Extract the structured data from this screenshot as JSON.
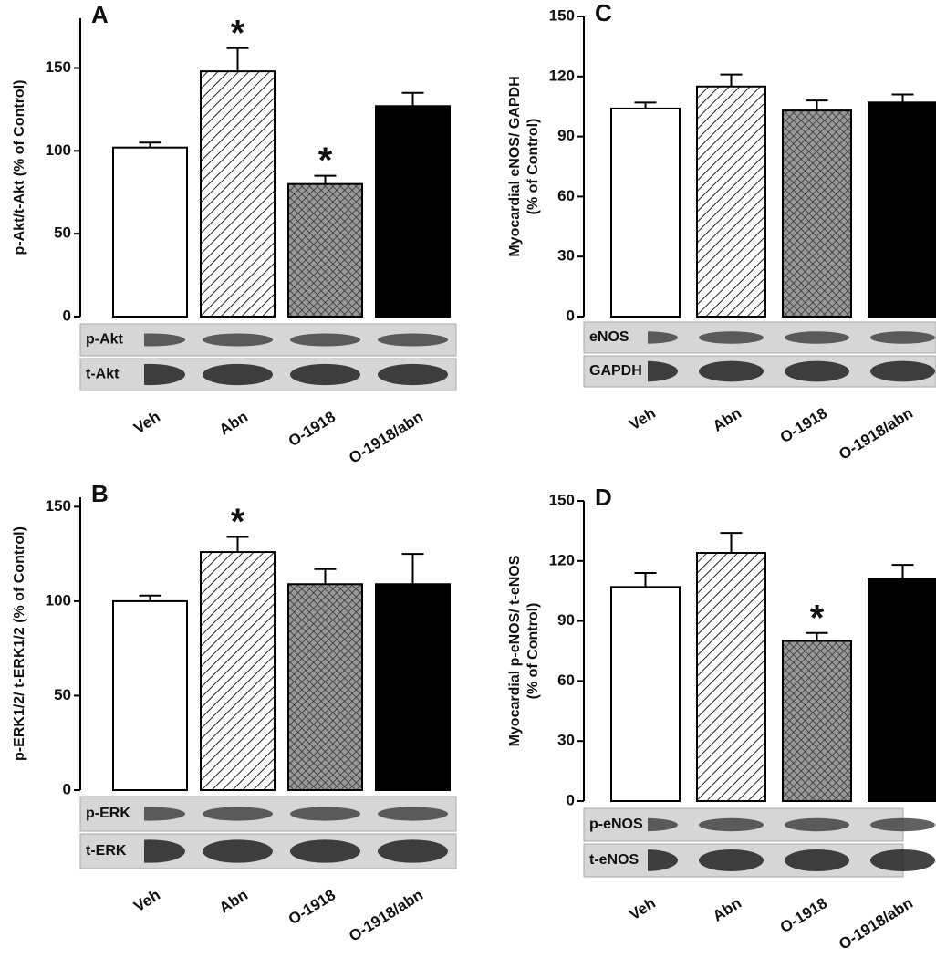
{
  "chart_data": [
    {
      "type": "bar",
      "panel": "A",
      "y_label_lines": [
        "p-Akt/t-Akt (% of Control)"
      ],
      "categories": [
        "Veh",
        "Abn",
        "O-1918",
        "O-1918/abn"
      ],
      "values": [
        102,
        148,
        80,
        127
      ],
      "errors": [
        3,
        14,
        5,
        8
      ],
      "markers": [
        null,
        "*",
        "*",
        null
      ],
      "fills": [
        "white",
        "hatch",
        "crosshatch",
        "black"
      ],
      "blots": [
        "p-Akt",
        "t-Akt"
      ],
      "ylim": [
        0,
        180
      ],
      "yticks": [
        0,
        50,
        100,
        150
      ]
    },
    {
      "type": "bar",
      "panel": "B",
      "y_label_lines": [
        "p-ERK1/2/ t-ERK1/2  (% of Control)"
      ],
      "categories": [
        "Veh",
        "Abn",
        "O-1918",
        "O-1918/abn"
      ],
      "values": [
        100,
        126,
        109,
        109
      ],
      "errors": [
        3,
        8,
        8,
        16
      ],
      "markers": [
        null,
        "*",
        null,
        null
      ],
      "fills": [
        "white",
        "hatch",
        "crosshatch",
        "black"
      ],
      "blots": [
        "p-ERK",
        "t-ERK"
      ],
      "ylim": [
        0,
        155
      ],
      "yticks": [
        0,
        50,
        100,
        150
      ]
    },
    {
      "type": "bar",
      "panel": "C",
      "y_label_lines": [
        "Myocardial eNOS/ GAPDH",
        "(% of Control)"
      ],
      "categories": [
        "Veh",
        "Abn",
        "O-1918",
        "O-1918/abn"
      ],
      "values": [
        104,
        115,
        103,
        107
      ],
      "errors": [
        3,
        6,
        5,
        4
      ],
      "markers": [
        null,
        null,
        null,
        null
      ],
      "fills": [
        "white",
        "hatch",
        "crosshatch",
        "black"
      ],
      "blots": [
        "eNOS",
        "GAPDH"
      ],
      "ylim": [
        0,
        150
      ],
      "yticks": [
        0,
        30,
        60,
        90,
        120,
        150
      ]
    },
    {
      "type": "bar",
      "panel": "D",
      "y_label_lines": [
        "Myocardial p-eNOS/ t-eNOS",
        "(% of Control)"
      ],
      "categories": [
        "Veh",
        "Abn",
        "O-1918",
        "O-1918/abn"
      ],
      "values": [
        107,
        124,
        80,
        111
      ],
      "errors": [
        7,
        10,
        4,
        7
      ],
      "markers": [
        null,
        null,
        "*",
        null
      ],
      "fills": [
        "white",
        "hatch",
        "crosshatch",
        "black"
      ],
      "blots": [
        "p-eNOS",
        "t-eNOS"
      ],
      "ylim": [
        0,
        150
      ],
      "yticks": [
        0,
        30,
        60,
        90,
        120,
        150
      ]
    }
  ]
}
